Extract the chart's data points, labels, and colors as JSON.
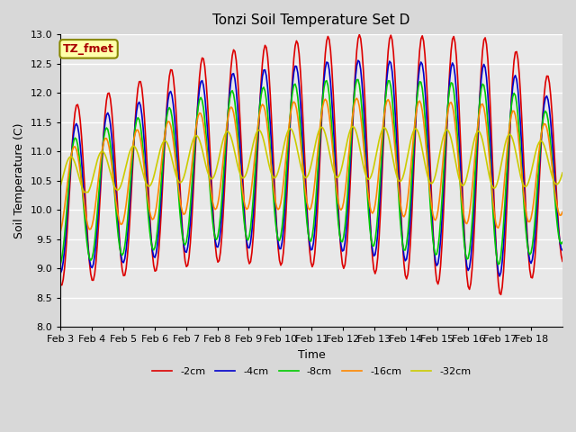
{
  "title": "Tonzi Soil Temperature Set D",
  "xlabel": "Time",
  "ylabel": "Soil Temperature (C)",
  "ylim": [
    8.0,
    13.0
  ],
  "series_labels": [
    "-2cm",
    "-4cm",
    "-8cm",
    "-16cm",
    "-32cm"
  ],
  "series_colors": [
    "#dd0000",
    "#0000cc",
    "#00cc00",
    "#ff8800",
    "#cccc00"
  ],
  "bg_color": "#d8d8d8",
  "plot_bg_color": "#e8e8e8",
  "grid_color": "#ffffff",
  "xtick_labels": [
    "Feb 3",
    "Feb 4",
    "Feb 5",
    "Feb 6",
    "Feb 7",
    "Feb 8",
    "Feb 9",
    "Feb 10",
    "Feb 11",
    "Feb 12",
    "Feb 13",
    "Feb 14",
    "Feb 15",
    "Feb 16",
    "Feb 17",
    "Feb 18"
  ],
  "n_days": 16,
  "pts_per_day": 24,
  "annotation_text": "TZ_fmet",
  "annotation_bg": "#ffffaa",
  "annotation_border": "#888800"
}
